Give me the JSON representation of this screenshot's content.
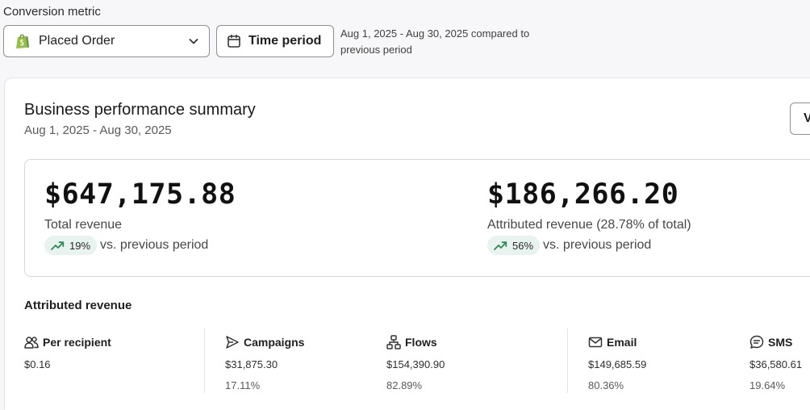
{
  "toolbar": {
    "conversion_label": "Conversion metric",
    "metric_value": "Placed Order",
    "time_button": "Time period",
    "range_line1": "Aug 1, 2025 - Aug 30, 2025 compared to",
    "range_line2": "previous period"
  },
  "card": {
    "title": "Business performance summary",
    "date": "Aug 1, 2025 - Aug 30, 2025",
    "view_button": "V"
  },
  "kpis": [
    {
      "amount": "$647,175.88",
      "name": "Total revenue",
      "delta": "19%",
      "vs": "vs. previous period"
    },
    {
      "amount": "$186,266.20",
      "name": "Attributed revenue (28.78% of total)",
      "delta": "56%",
      "vs": "vs. previous period"
    }
  ],
  "attributed": {
    "title": "Attributed revenue",
    "stats": [
      {
        "label": "Per recipient",
        "value": "$0.16",
        "pct": "",
        "icon": "people-icon"
      },
      {
        "label": "Campaigns",
        "value": "$31,875.30",
        "pct": "17.11%",
        "icon": "send-icon"
      },
      {
        "label": "Flows",
        "value": "$154,390.90",
        "pct": "82.89%",
        "icon": "flow-icon"
      },
      {
        "label": "Email",
        "value": "$149,685.59",
        "pct": "80.36%",
        "icon": "mail-icon"
      },
      {
        "label": "SMS",
        "value": "$36,580.61",
        "pct": "19.64%",
        "icon": "sms-icon"
      }
    ]
  },
  "colors": {
    "accent_green": "#2e8b57",
    "pill_bg": "#e8f2ee",
    "shopify_green": "#95bf47"
  }
}
